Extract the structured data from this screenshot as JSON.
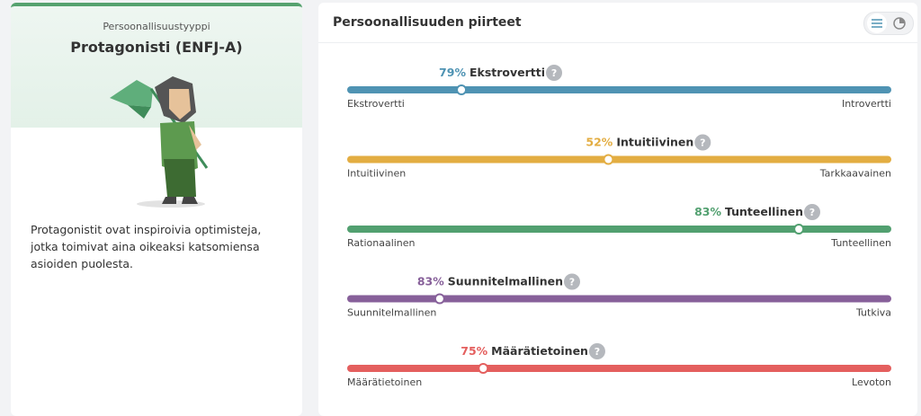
{
  "profile": {
    "label": "Persoonallisuustyyppi",
    "title": "Protagonisti (ENFJ-A)",
    "description": "Protagonistit ovat inspiroivia optimisteja, jotka toimivat aina oikeaksi katsomiensa asioiden puolesta."
  },
  "traits_panel": {
    "title": "Persoonallisuuden piirteet",
    "traits": [
      {
        "percent": 79,
        "percent_label": "79%",
        "name": "Ekstrovertti",
        "left": "Ekstrovertti",
        "right": "Introvertti",
        "color": "#4f93b3"
      },
      {
        "percent": 52,
        "percent_label": "52%",
        "name": "Intuitiivinen",
        "left": "Intuitiivinen",
        "right": "Tarkkaavainen",
        "color": "#e3ad42"
      },
      {
        "percent": 83,
        "percent_label": "83%",
        "name": "Tunteellinen",
        "left": "Rationaalinen",
        "right": "Tunteellinen",
        "color": "#52a070"
      },
      {
        "percent": 83,
        "percent_label": "83%",
        "name": "Suunnitelmallinen",
        "left": "Suunnitelmallinen",
        "right": "Tutkiva",
        "color": "#87609a"
      },
      {
        "percent": 75,
        "percent_label": "75%",
        "name": "Määrätietoinen",
        "left": "Määrätietoinen",
        "right": "Levoton",
        "color": "#e45f5e"
      }
    ]
  }
}
